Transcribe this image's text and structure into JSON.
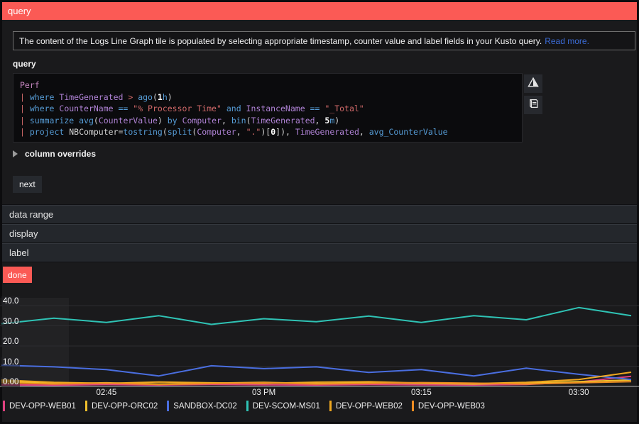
{
  "titlebar": {
    "title": "query",
    "accent_color": "#fb5a55"
  },
  "info": {
    "text": "The content of the Logs Line Graph tile is populated by selecting appropriate timestamp, counter value and label fields in your Kusto query.",
    "link": "Read more."
  },
  "editor": {
    "label": "query",
    "icons": [
      "run-query-icon",
      "docs-book-icon"
    ],
    "lines": [
      [
        {
          "t": "Perf",
          "c": "type"
        }
      ],
      [
        {
          "t": "| ",
          "c": "pipe"
        },
        {
          "t": "where ",
          "c": "kw"
        },
        {
          "t": "TimeGenerated ",
          "c": "id"
        },
        {
          "t": "> ",
          "c": "opr"
        },
        {
          "t": "ago",
          "c": "kw"
        },
        {
          "t": "(",
          "c": "pun"
        },
        {
          "t": "1",
          "c": "num"
        },
        {
          "t": "h",
          "c": "kw"
        },
        {
          "t": ")",
          "c": "pun"
        }
      ],
      [
        {
          "t": "| ",
          "c": "pipe"
        },
        {
          "t": "where ",
          "c": "kw"
        },
        {
          "t": "CounterName ",
          "c": "id"
        },
        {
          "t": "== ",
          "c": "op"
        },
        {
          "t": "\"% Processor Time\" ",
          "c": "str"
        },
        {
          "t": "and ",
          "c": "kw"
        },
        {
          "t": "InstanceName ",
          "c": "id"
        },
        {
          "t": "== ",
          "c": "op"
        },
        {
          "t": "\"_Total\"",
          "c": "str"
        }
      ],
      [
        {
          "t": "| ",
          "c": "pipe"
        },
        {
          "t": "summarize ",
          "c": "kw"
        },
        {
          "t": "avg",
          "c": "kw"
        },
        {
          "t": "(",
          "c": "pun"
        },
        {
          "t": "CounterValue",
          "c": "id"
        },
        {
          "t": ") ",
          "c": "pun"
        },
        {
          "t": "by ",
          "c": "kw"
        },
        {
          "t": "Computer",
          "c": "id"
        },
        {
          "t": ", ",
          "c": "pun"
        },
        {
          "t": "bin",
          "c": "kw"
        },
        {
          "t": "(",
          "c": "pun"
        },
        {
          "t": "TimeGenerated",
          "c": "id"
        },
        {
          "t": ", ",
          "c": "pun"
        },
        {
          "t": "5",
          "c": "num"
        },
        {
          "t": "m",
          "c": "kw"
        },
        {
          "t": ")",
          "c": "pun"
        }
      ],
      [
        {
          "t": "| ",
          "c": "pipe"
        },
        {
          "t": "project ",
          "c": "kw"
        },
        {
          "t": "NBComputer=",
          "c": "pun"
        },
        {
          "t": "tostring",
          "c": "kw"
        },
        {
          "t": "(",
          "c": "pun"
        },
        {
          "t": "split",
          "c": "kw"
        },
        {
          "t": "(",
          "c": "pun"
        },
        {
          "t": "Computer",
          "c": "id"
        },
        {
          "t": ", ",
          "c": "pun"
        },
        {
          "t": "\".\"",
          "c": "str"
        },
        {
          "t": ")[",
          "c": "pun"
        },
        {
          "t": "0",
          "c": "num"
        },
        {
          "t": "])",
          "c": "pun"
        },
        {
          "t": ", ",
          "c": "pun"
        },
        {
          "t": "TimeGenerated",
          "c": "id"
        },
        {
          "t": ", ",
          "c": "pun"
        },
        {
          "t": "avg_CounterValue",
          "c": "kw"
        }
      ]
    ]
  },
  "collapse": {
    "label": "column overrides"
  },
  "buttons": {
    "next": "next",
    "done": "done"
  },
  "sections": [
    "data range",
    "display",
    "label"
  ],
  "chart_data": {
    "type": "line",
    "x": [
      "02:35",
      "02:40",
      "02:45",
      "02:50",
      "02:55",
      "03:00",
      "03:05",
      "03:10",
      "03:15",
      "03:20",
      "03:25",
      "03:30",
      "03:35"
    ],
    "series": [
      {
        "name": "DEV-OPP-WEB01",
        "color": "#e0417f",
        "values": [
          0.8,
          0.6,
          0.9,
          0.7,
          1.0,
          0.8,
          0.7,
          0.9,
          0.8,
          0.7,
          1.0,
          2.2,
          5.0
        ]
      },
      {
        "name": "DEV-OPP-ORC02",
        "color": "#f0c02c",
        "values": [
          2.6,
          1.4,
          1.8,
          1.2,
          1.6,
          2.0,
          1.4,
          1.8,
          1.5,
          1.2,
          1.6,
          2.4,
          3.2
        ]
      },
      {
        "name": "SANDBOX-DC02",
        "color": "#4a6ee0",
        "values": [
          10.5,
          9.7,
          8.3,
          5.2,
          10.2,
          8.8,
          9.7,
          6.9,
          8.3,
          5.2,
          9.0,
          6.0,
          3.4
        ]
      },
      {
        "name": "DEV-SCOM-MS01",
        "color": "#2fc3b5",
        "values": [
          31.0,
          33.8,
          31.7,
          35.0,
          30.7,
          33.5,
          32.0,
          34.8,
          31.7,
          35.0,
          33.0,
          39.0,
          35.0
        ]
      },
      {
        "name": "DEV-OPP-WEB02",
        "color": "#f0a81f",
        "values": [
          3.2,
          2.0,
          1.5,
          2.2,
          1.8,
          1.5,
          2.1,
          2.3,
          1.7,
          1.4,
          2.0,
          3.4,
          7.0
        ]
      },
      {
        "name": "DEV-OPP-WEB03",
        "color": "#ee8c22",
        "values": [
          1.8,
          1.2,
          1.6,
          1.0,
          1.4,
          1.8,
          1.2,
          1.5,
          1.9,
          1.6,
          1.2,
          1.8,
          2.4
        ]
      }
    ],
    "ylim": [
      0,
      43
    ],
    "yticks": [
      {
        "label": "40.0",
        "v": 40
      },
      {
        "label": "30.0",
        "v": 30
      },
      {
        "label": "20.0",
        "v": 20
      },
      {
        "label": "10.0",
        "v": 10
      },
      {
        "label": "0.00",
        "v": 0
      }
    ],
    "xticks": [
      {
        "label": "02:45",
        "index": 2
      },
      {
        "label": "03 PM",
        "index": 5
      },
      {
        "label": "03:15",
        "index": 8
      },
      {
        "label": "03:30",
        "index": 11
      }
    ],
    "grid": true,
    "legend_position": "bottom",
    "title": "",
    "xlabel": "",
    "ylabel": ""
  }
}
